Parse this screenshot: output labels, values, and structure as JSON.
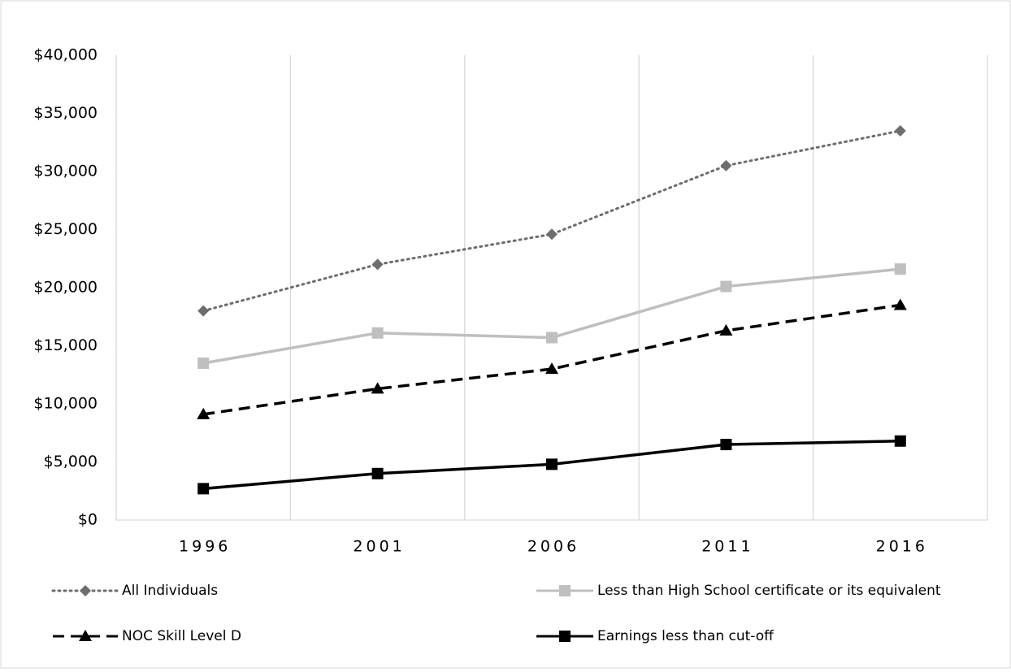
{
  "chart_data": {
    "type": "line",
    "categories": [
      "1996",
      "2001",
      "2006",
      "2011",
      "2016"
    ],
    "series": [
      {
        "name": "All Individuals",
        "color": "#6d6d6d",
        "line_style": "dotted",
        "marker": "diamond",
        "values": [
          18000,
          22000,
          24600,
          30500,
          33500
        ]
      },
      {
        "name": "Less than High School certificate or its equivalent",
        "color": "#bfbfbf",
        "line_style": "solid",
        "marker": "square",
        "values": [
          13500,
          16100,
          15700,
          20100,
          21600
        ]
      },
      {
        "name": "NOC Skill Level D",
        "color": "#000000",
        "line_style": "dashed",
        "marker": "triangle",
        "values": [
          9100,
          11300,
          13000,
          16300,
          18500
        ]
      },
      {
        "name": "Earnings less than cut-off",
        "color": "#000000",
        "line_style": "solid",
        "marker": "square",
        "values": [
          2700,
          4000,
          4800,
          6500,
          6800
        ]
      }
    ],
    "ylim": [
      0,
      40000
    ],
    "yticks": [
      {
        "value": 0,
        "label": "$0"
      },
      {
        "value": 5000,
        "label": "$5,000"
      },
      {
        "value": 10000,
        "label": "$10,000"
      },
      {
        "value": 15000,
        "label": "$15,000"
      },
      {
        "value": 20000,
        "label": "$20,000"
      },
      {
        "value": 25000,
        "label": "$25,000"
      },
      {
        "value": 30000,
        "label": "$30,000"
      },
      {
        "value": 35000,
        "label": "$35,000"
      },
      {
        "value": 40000,
        "label": "$40,000"
      }
    ],
    "grid": "vertical",
    "legend": "bottom"
  }
}
